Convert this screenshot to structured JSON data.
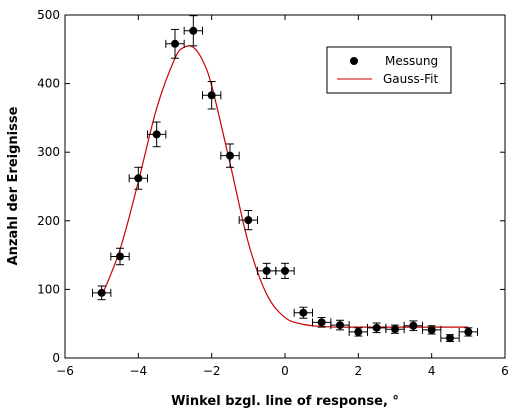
{
  "chart_data": {
    "type": "scatter",
    "title": "",
    "xlabel": "Winkel bzgl. line of response, °",
    "ylabel": "Anzahl der Ereignisse",
    "xlim": [
      -6,
      6
    ],
    "ylim": [
      0,
      500
    ],
    "x_ticks": [
      -6,
      -4,
      -2,
      0,
      2,
      4,
      6
    ],
    "x_tick_labels": [
      "−6",
      "−4",
      "−2",
      "0",
      "2",
      "4",
      "6"
    ],
    "y_ticks": [
      0,
      100,
      200,
      300,
      400,
      500
    ],
    "y_tick_labels": [
      "0",
      "100",
      "200",
      "300",
      "400",
      "500"
    ],
    "grid": false,
    "legend_position": "top-right",
    "series": [
      {
        "name": "Messung",
        "kind": "points-with-errorbars",
        "color": "#000000",
        "x": [
          -5.0,
          -4.5,
          -4.0,
          -3.5,
          -3.0,
          -2.5,
          -2.0,
          -1.5,
          -1.0,
          -0.5,
          0.0,
          0.5,
          1.0,
          1.5,
          2.0,
          2.5,
          3.0,
          3.5,
          4.0,
          4.5,
          5.0
        ],
        "y": [
          95,
          148,
          262,
          326,
          458,
          477,
          383,
          295,
          201,
          127,
          127,
          66,
          52,
          48,
          38,
          44,
          42,
          47,
          41,
          29,
          38
        ],
        "x_err": [
          0.25,
          0.25,
          0.25,
          0.25,
          0.25,
          0.25,
          0.25,
          0.25,
          0.25,
          0.25,
          0.25,
          0.25,
          0.25,
          0.25,
          0.25,
          0.25,
          0.25,
          0.25,
          0.25,
          0.25,
          0.25
        ],
        "y_err": [
          10,
          12,
          16,
          18,
          21,
          22,
          20,
          17,
          14,
          11,
          11,
          8,
          7,
          7,
          6,
          7,
          6,
          7,
          6,
          5,
          6
        ]
      },
      {
        "name": "Gauss-Fit",
        "kind": "line",
        "color": "#cc0000",
        "x": [
          -5.0,
          -4.5,
          -4.0,
          -3.5,
          -3.0,
          -2.75,
          -2.5,
          -2.25,
          -2.0,
          -1.5,
          -1.0,
          -0.5,
          0.0,
          0.5,
          1.0,
          1.5,
          2.0,
          3.0,
          4.0,
          5.0
        ],
        "y": [
          90,
          158,
          257,
          364,
          437,
          453,
          453,
          434,
          397,
          284,
          168,
          93,
          59,
          49,
          46,
          45,
          45,
          45,
          45,
          45
        ]
      }
    ]
  }
}
